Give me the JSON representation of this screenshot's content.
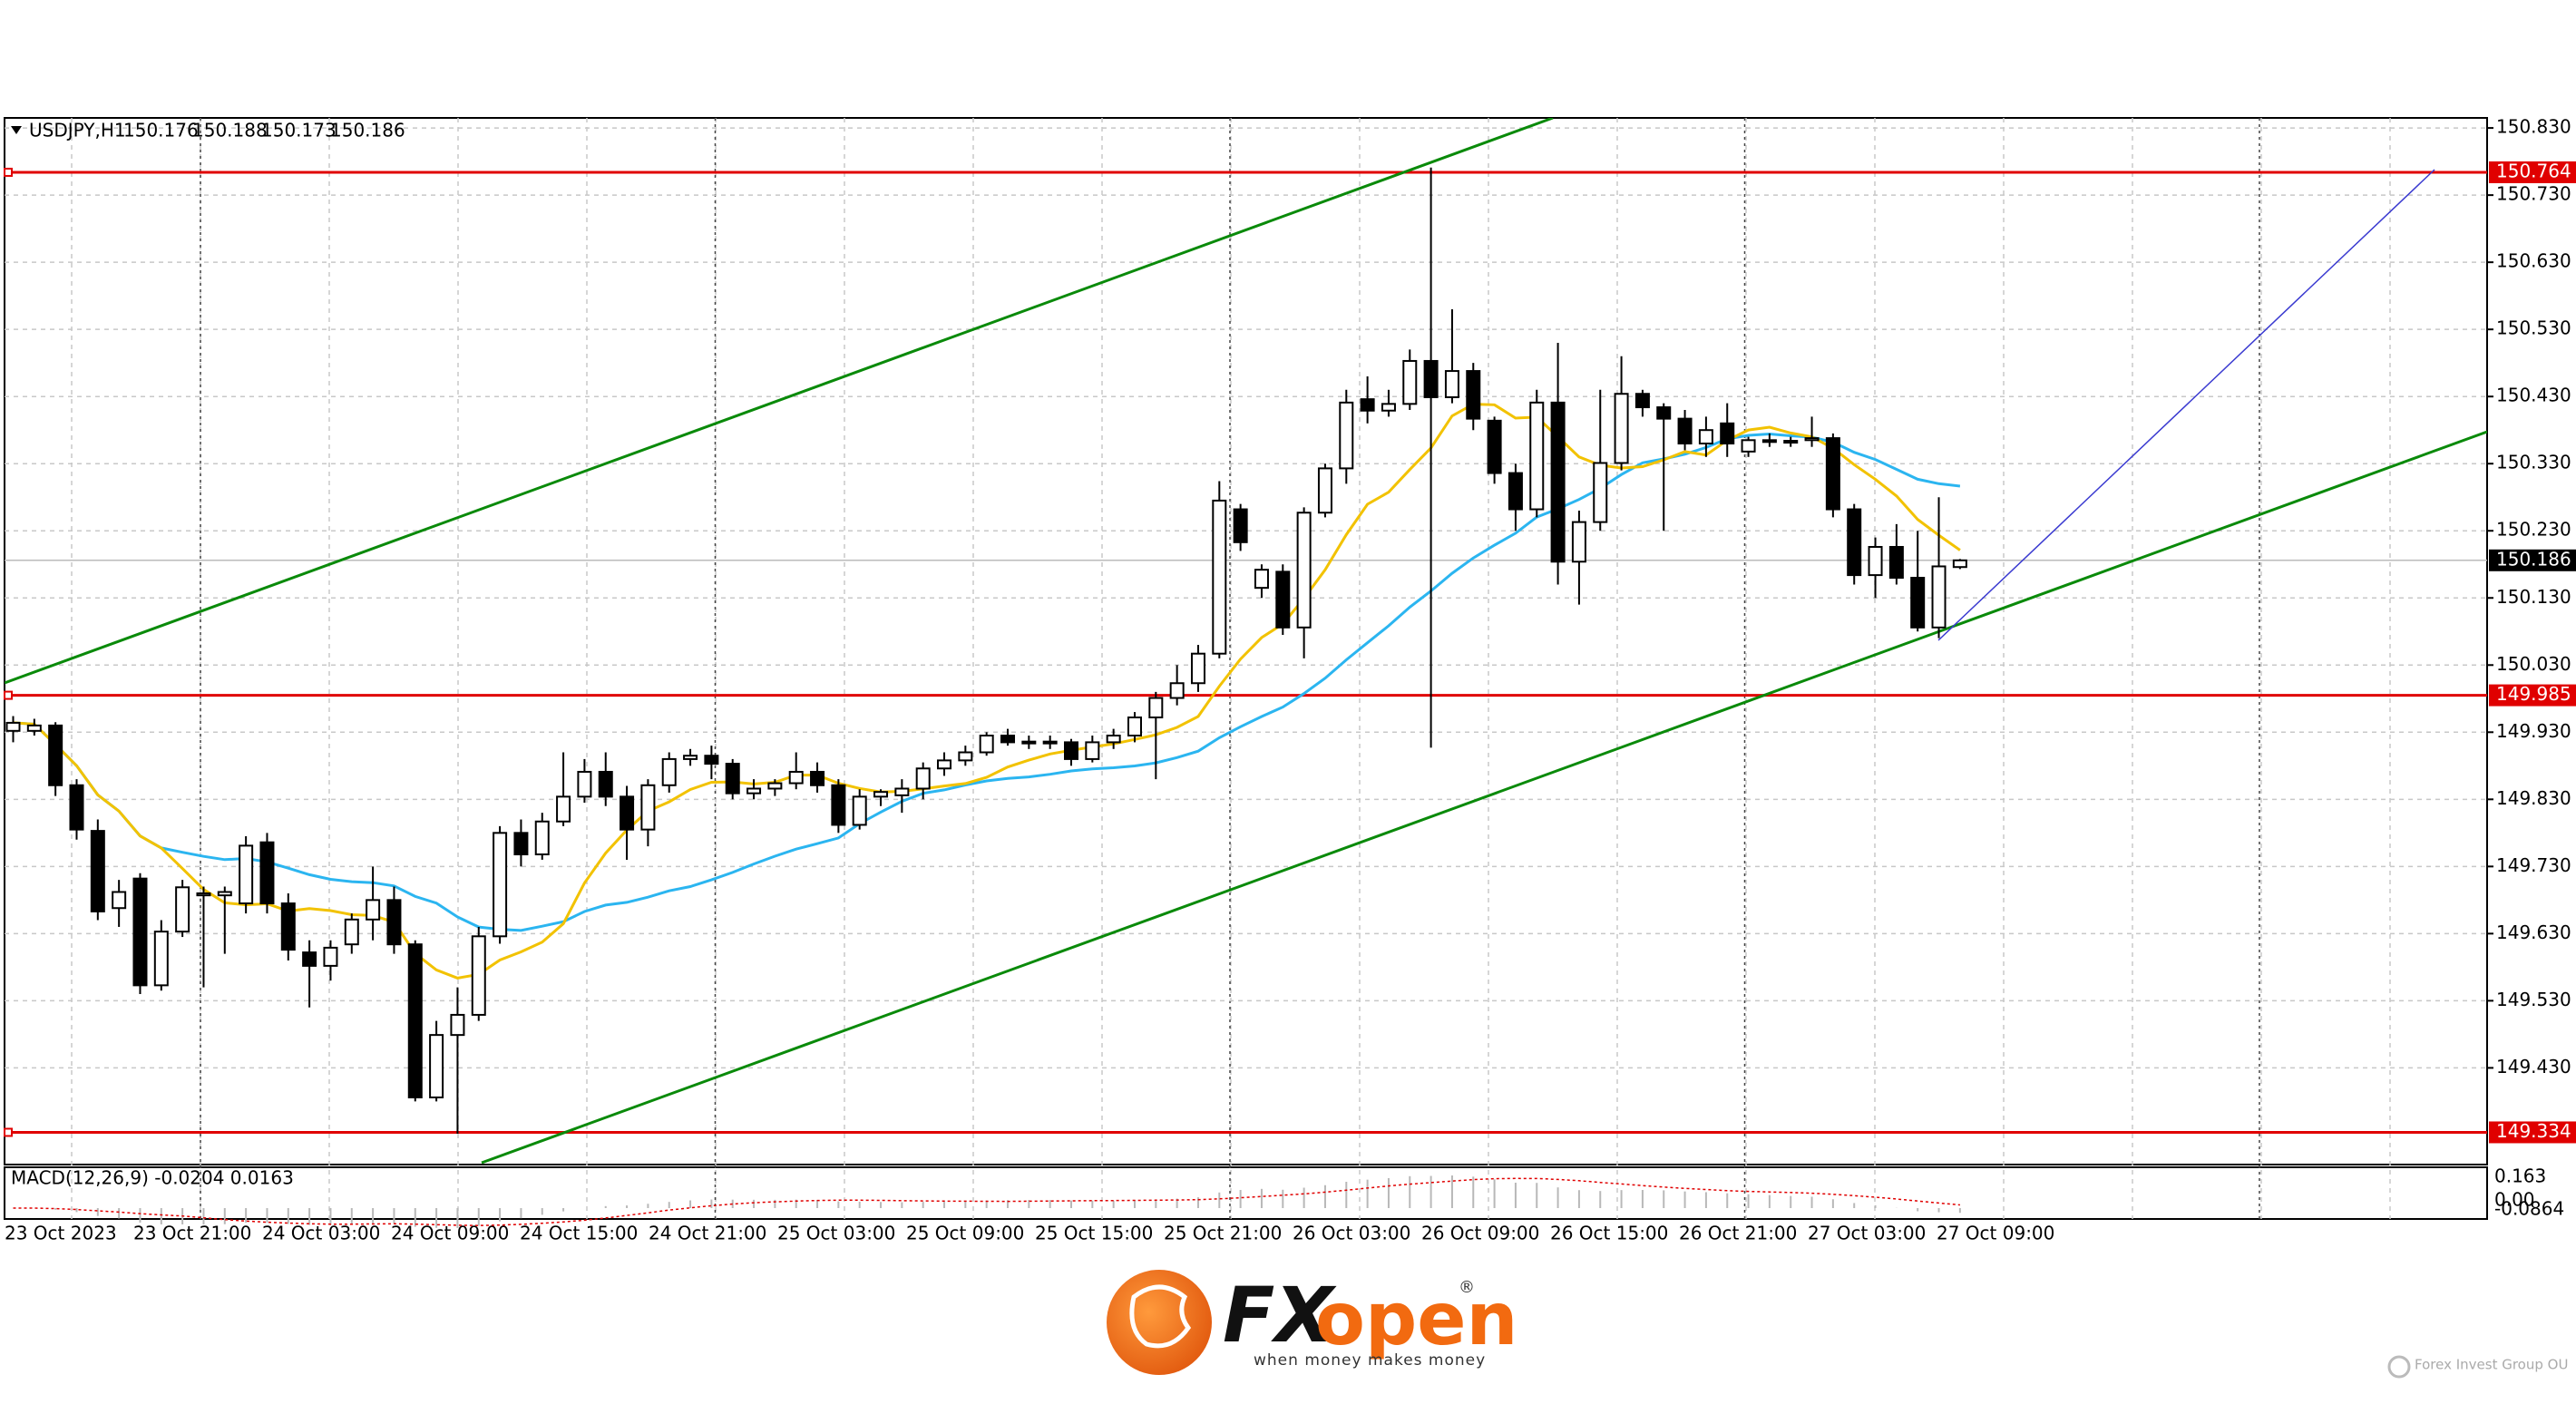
{
  "header": {
    "symbol": "USDJPY,H1"
  },
  "chart_data": {
    "type": "candlestick",
    "candles": [
      [
        149.932,
        149.954,
        149.915,
        149.944
      ],
      [
        149.932,
        149.95,
        149.925,
        149.94
      ],
      [
        149.94,
        149.945,
        149.835,
        149.851
      ],
      [
        149.851,
        149.86,
        149.77,
        149.785
      ],
      [
        149.783,
        149.8,
        149.65,
        149.663
      ],
      [
        149.668,
        149.71,
        149.64,
        149.692
      ],
      [
        149.712,
        149.72,
        149.54,
        149.553
      ],
      [
        149.553,
        149.65,
        149.545,
        149.633
      ],
      [
        149.633,
        149.71,
        149.625,
        149.699
      ],
      [
        149.687,
        149.7,
        149.55,
        149.69
      ],
      [
        149.687,
        149.7,
        149.6,
        149.692
      ],
      [
        149.675,
        149.775,
        149.66,
        149.761
      ],
      [
        149.766,
        149.78,
        149.66,
        149.675
      ],
      [
        149.675,
        149.69,
        149.59,
        149.606
      ],
      [
        149.602,
        149.62,
        149.52,
        149.582
      ],
      [
        149.582,
        149.62,
        149.56,
        149.609
      ],
      [
        149.614,
        149.66,
        149.6,
        149.651
      ],
      [
        149.651,
        149.73,
        149.62,
        149.68
      ],
      [
        149.68,
        149.7,
        149.6,
        149.614
      ],
      [
        149.614,
        149.62,
        149.38,
        149.386
      ],
      [
        149.386,
        149.5,
        149.38,
        149.479
      ],
      [
        149.479,
        149.55,
        149.332,
        149.509
      ],
      [
        149.509,
        149.64,
        149.5,
        149.626
      ],
      [
        149.626,
        149.79,
        149.615,
        149.78
      ],
      [
        149.78,
        149.8,
        149.73,
        149.748
      ],
      [
        149.748,
        149.81,
        149.74,
        149.797
      ],
      [
        149.797,
        149.9,
        149.79,
        149.834
      ],
      [
        149.834,
        149.89,
        149.825,
        149.871
      ],
      [
        149.871,
        149.9,
        149.82,
        149.834
      ],
      [
        149.834,
        149.85,
        149.74,
        149.785
      ],
      [
        149.785,
        149.86,
        149.76,
        149.851
      ],
      [
        149.851,
        149.9,
        149.84,
        149.89
      ],
      [
        149.89,
        149.905,
        149.88,
        149.895
      ],
      [
        149.895,
        149.91,
        149.86,
        149.883
      ],
      [
        149.883,
        149.89,
        149.83,
        149.839
      ],
      [
        149.839,
        149.86,
        149.83,
        149.846
      ],
      [
        149.846,
        149.86,
        149.835,
        149.854
      ],
      [
        149.854,
        149.9,
        149.845,
        149.871
      ],
      [
        149.871,
        149.885,
        149.84,
        149.851
      ],
      [
        149.851,
        149.86,
        149.78,
        149.792
      ],
      [
        149.792,
        149.845,
        149.785,
        149.834
      ],
      [
        149.834,
        149.845,
        149.82,
        149.841
      ],
      [
        149.836,
        149.86,
        149.81,
        149.846
      ],
      [
        149.846,
        149.885,
        149.83,
        149.876
      ],
      [
        149.876,
        149.9,
        149.865,
        149.888
      ],
      [
        149.888,
        149.91,
        149.88,
        149.9
      ],
      [
        149.9,
        149.93,
        149.895,
        149.925
      ],
      [
        149.925,
        149.935,
        149.91,
        149.915
      ],
      [
        149.915,
        149.925,
        149.905,
        149.916
      ],
      [
        149.916,
        149.925,
        149.905,
        149.915
      ],
      [
        149.915,
        149.92,
        149.88,
        149.89
      ],
      [
        149.89,
        149.925,
        149.885,
        149.915
      ],
      [
        149.915,
        149.935,
        149.905,
        149.925
      ],
      [
        149.925,
        149.96,
        149.915,
        149.952
      ],
      [
        149.952,
        149.99,
        149.86,
        149.981
      ],
      [
        149.981,
        150.03,
        149.97,
        150.003
      ],
      [
        150.003,
        150.06,
        149.99,
        150.047
      ],
      [
        150.047,
        150.304,
        150.04,
        150.275
      ],
      [
        150.262,
        150.27,
        150.2,
        150.213
      ],
      [
        150.145,
        150.18,
        150.13,
        150.172
      ],
      [
        150.169,
        150.18,
        150.075,
        150.086
      ],
      [
        150.086,
        150.265,
        150.04,
        150.257
      ],
      [
        150.257,
        150.33,
        150.25,
        150.323
      ],
      [
        150.323,
        150.44,
        150.3,
        150.421
      ],
      [
        150.426,
        150.46,
        150.39,
        150.409
      ],
      [
        150.409,
        150.44,
        150.4,
        150.419
      ],
      [
        150.419,
        150.5,
        150.41,
        150.483
      ],
      [
        150.483,
        150.771,
        149.907,
        150.429
      ],
      [
        150.429,
        150.56,
        150.42,
        150.468
      ],
      [
        150.468,
        150.48,
        150.38,
        150.397
      ],
      [
        150.394,
        150.4,
        150.3,
        150.316
      ],
      [
        150.316,
        150.33,
        150.23,
        150.262
      ],
      [
        150.262,
        150.44,
        150.25,
        150.421
      ],
      [
        150.421,
        150.51,
        150.15,
        150.184
      ],
      [
        150.184,
        150.26,
        150.12,
        150.243
      ],
      [
        150.243,
        150.44,
        150.23,
        150.331
      ],
      [
        150.331,
        150.49,
        150.32,
        150.434
      ],
      [
        150.434,
        150.44,
        150.4,
        150.414
      ],
      [
        150.414,
        150.42,
        150.23,
        150.397
      ],
      [
        150.397,
        150.41,
        150.35,
        150.36
      ],
      [
        150.36,
        150.4,
        150.34,
        150.38
      ],
      [
        150.39,
        150.42,
        150.34,
        150.36
      ],
      [
        150.348,
        150.37,
        150.34,
        150.365
      ],
      [
        150.365,
        150.375,
        150.355,
        150.365
      ],
      [
        150.363,
        150.37,
        150.355,
        150.364
      ],
      [
        150.365,
        150.4,
        150.355,
        150.368
      ],
      [
        150.368,
        150.375,
        150.25,
        150.262
      ],
      [
        150.262,
        150.27,
        150.15,
        150.164
      ],
      [
        150.164,
        150.22,
        150.13,
        150.206
      ],
      [
        150.206,
        150.24,
        150.15,
        150.16
      ],
      [
        150.16,
        150.23,
        150.08,
        150.086
      ],
      [
        150.086,
        150.28,
        150.07,
        150.177
      ],
      [
        150.176,
        150.188,
        150.173,
        150.186
      ]
    ],
    "x_labels": [
      "23 Oct 2023",
      "23 Oct 21:00",
      "24 Oct 03:00",
      "24 Oct 09:00",
      "24 Oct 15:00",
      "24 Oct 21:00",
      "25 Oct 03:00",
      "25 Oct 09:00",
      "25 Oct 15:00",
      "25 Oct 21:00",
      "26 Oct 03:00",
      "26 Oct 09:00",
      "26 Oct 15:00",
      "26 Oct 21:00",
      "27 Oct 03:00",
      "27 Oct 09:00"
    ],
    "ylim": [
      149.286,
      150.845
    ],
    "yticks": [
      {
        "value": 150.83,
        "label": "150.830"
      },
      {
        "value": 150.73,
        "label": "150.730"
      },
      {
        "value": 150.63,
        "label": "150.630"
      },
      {
        "value": 150.53,
        "label": "150.530"
      },
      {
        "value": 150.43,
        "label": "150.430"
      },
      {
        "value": 150.33,
        "label": "150.330"
      },
      {
        "value": 150.23,
        "label": "150.230"
      },
      {
        "value": 150.13,
        "label": "150.130"
      },
      {
        "value": 150.03,
        "label": "150.030"
      },
      {
        "value": 149.93,
        "label": "149.930"
      },
      {
        "value": 149.83,
        "label": "149.830"
      },
      {
        "value": 149.73,
        "label": "149.730"
      },
      {
        "value": 149.63,
        "label": "149.630"
      },
      {
        "value": 149.53,
        "label": "149.530"
      },
      {
        "value": 149.43,
        "label": "149.430"
      }
    ],
    "levels": [
      {
        "value": 150.764,
        "color": "#e00000"
      },
      {
        "value": 149.985,
        "color": "#e00000"
      },
      {
        "value": 149.334,
        "color": "#e00000"
      }
    ],
    "up_color": "#ffffff",
    "down_color": "#000000",
    "fast_ma_color": "#f2c200",
    "slow_ma_color": "#2bb5f0",
    "grid": true,
    "indicator": {
      "label": "MACD(12,26,9) -0.0204 0.0163",
      "scale_labels": [
        "0.163",
        "0.00",
        "-0.0864"
      ]
    }
  },
  "branding": {
    "fx": "FX",
    "open": "open",
    "mark": "®",
    "tagline": "when money makes money",
    "footer": "Forex Invest Group OU"
  }
}
